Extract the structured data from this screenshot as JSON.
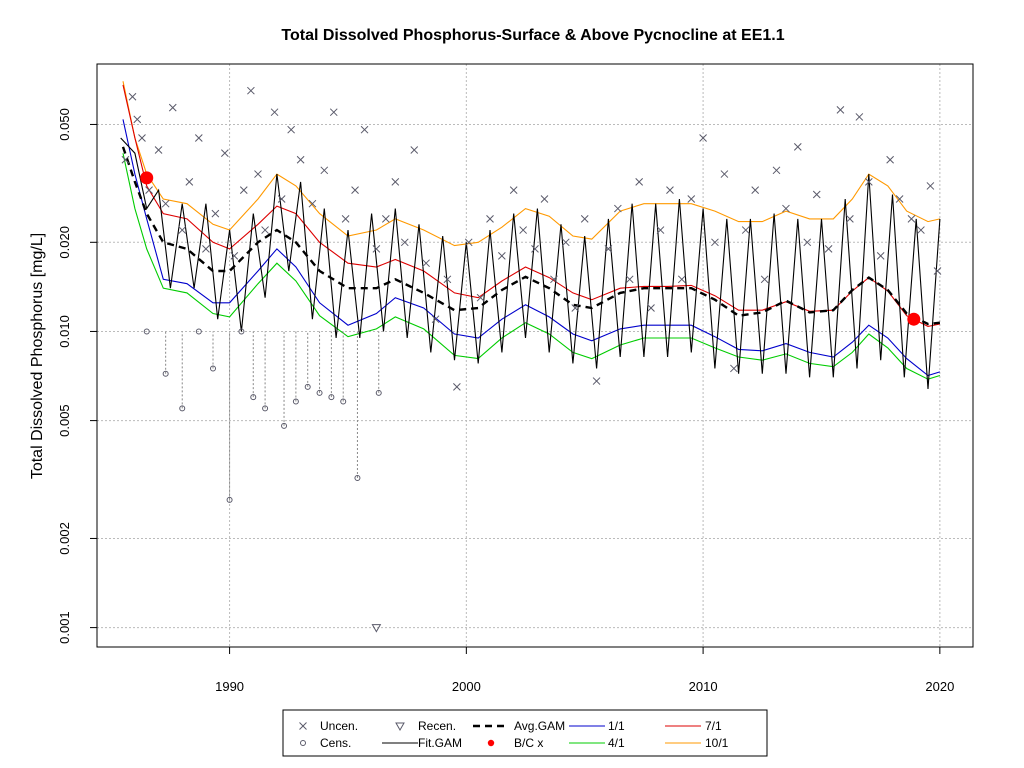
{
  "chart_data": {
    "type": "scatter",
    "title": "Total Dissolved Phosphorus-Surface & Above Pycnocline at EE1.1",
    "xlabel": "",
    "ylabel": "Total Dissolved Phosphorus [mg/L]",
    "y_scale": "log",
    "xlim": [
      1984.4,
      2021.4
    ],
    "ylim": [
      0.00086,
      0.08
    ],
    "grid": true,
    "x_ticks": [
      1990,
      2000,
      2010,
      2020
    ],
    "y_ticks": [
      0.001,
      0.002,
      0.005,
      0.01,
      0.02,
      0.05
    ],
    "x_tick_labels": [
      "1990",
      "2000",
      "2010",
      "2020"
    ],
    "y_tick_labels": [
      "0.001",
      "0.002",
      "0.005",
      "0.010",
      "0.020",
      "0.050"
    ],
    "legend_position": "bottom-center",
    "legend": [
      {
        "label": "Uncen.",
        "symbol": "x",
        "color": "#5a5a6a"
      },
      {
        "label": "Recen.",
        "symbol": "triangle-down",
        "color": "#5a5a6a"
      },
      {
        "label": "Avg.GAM",
        "symbol": "dashed-line",
        "color": "#000000"
      },
      {
        "label": "1/1",
        "symbol": "line",
        "color": "#0000cc"
      },
      {
        "label": "7/1",
        "symbol": "line",
        "color": "#dd0000"
      },
      {
        "label": "Cens.",
        "symbol": "circle",
        "color": "#5a5a6a"
      },
      {
        "label": "Fit.GAM",
        "symbol": "line",
        "color": "#000000"
      },
      {
        "label": "B/C x",
        "symbol": "dot",
        "color": "#ff0000"
      },
      {
        "label": "4/1",
        "symbol": "line",
        "color": "#00cc00"
      },
      {
        "label": "10/1",
        "symbol": "line",
        "color": "#ff9900"
      }
    ],
    "series": [
      {
        "name": "Avg.GAM",
        "color": "#000000",
        "style": "dashed",
        "x": [
          1985.5,
          1986.0,
          1986.5,
          1987.2,
          1988.2,
          1989.3,
          1990.0,
          1991.2,
          1992.0,
          1992.8,
          1993.8,
          1995.0,
          1996.2,
          1997.0,
          1998.2,
          1999.5,
          2000.5,
          2001.5,
          2002.5,
          2003.5,
          2004.5,
          2005.3,
          2006.5,
          2007.5,
          2008.5,
          2009.5,
          2010.5,
          2011.5,
          2012.5,
          2013.5,
          2014.5,
          2015.5,
          2016.3,
          2017.0,
          2017.8,
          2018.6,
          2019.5,
          2020.0
        ],
        "y": [
          0.042,
          0.032,
          0.025,
          0.02,
          0.019,
          0.016,
          0.016,
          0.02,
          0.022,
          0.02,
          0.016,
          0.014,
          0.014,
          0.015,
          0.0135,
          0.0118,
          0.012,
          0.0138,
          0.0153,
          0.014,
          0.0123,
          0.012,
          0.0135,
          0.014,
          0.014,
          0.014,
          0.0128,
          0.0113,
          0.0116,
          0.0127,
          0.0116,
          0.0118,
          0.0138,
          0.0152,
          0.0138,
          0.0115,
          0.0106,
          0.0107
        ]
      },
      {
        "name": "1/1",
        "color": "#0000cc",
        "x": [
          1985.5,
          1986.0,
          1986.5,
          1987.2,
          1988.2,
          1989.3,
          1990.0,
          1991.2,
          1992.0,
          1992.8,
          1993.8,
          1995.0,
          1996.2,
          1997.0,
          1998.2,
          1999.5,
          2000.5,
          2001.5,
          2002.5,
          2003.5,
          2004.5,
          2005.3,
          2006.5,
          2007.5,
          2008.5,
          2009.5,
          2010.5,
          2011.5,
          2012.5,
          2013.5,
          2014.5,
          2015.5,
          2016.3,
          2017.0,
          2017.8,
          2018.6,
          2019.5,
          2020.0
        ],
        "y": [
          0.052,
          0.034,
          0.024,
          0.015,
          0.0145,
          0.0125,
          0.0125,
          0.016,
          0.019,
          0.0165,
          0.0125,
          0.0105,
          0.0115,
          0.013,
          0.012,
          0.0098,
          0.0095,
          0.011,
          0.0123,
          0.0112,
          0.0098,
          0.0093,
          0.0102,
          0.0105,
          0.0105,
          0.0105,
          0.0096,
          0.0087,
          0.0086,
          0.0091,
          0.0085,
          0.0082,
          0.0092,
          0.0105,
          0.0095,
          0.0081,
          0.0071,
          0.0073
        ]
      },
      {
        "name": "4/1",
        "color": "#00cc00",
        "x": [
          1985.5,
          1986.0,
          1986.5,
          1987.2,
          1988.2,
          1989.3,
          1990.0,
          1991.2,
          1992.0,
          1992.8,
          1993.8,
          1995.0,
          1996.2,
          1997.0,
          1998.2,
          1999.5,
          2000.5,
          2001.5,
          2002.5,
          2003.5,
          2004.5,
          2005.3,
          2006.5,
          2007.5,
          2008.5,
          2009.5,
          2010.5,
          2011.5,
          2012.5,
          2013.5,
          2014.5,
          2015.5,
          2016.3,
          2017.0,
          2017.8,
          2018.6,
          2019.5,
          2020.0
        ],
        "y": [
          0.04,
          0.026,
          0.019,
          0.014,
          0.0135,
          0.0115,
          0.0112,
          0.0145,
          0.017,
          0.0148,
          0.0113,
          0.0096,
          0.0102,
          0.0112,
          0.0102,
          0.0083,
          0.0081,
          0.0095,
          0.0107,
          0.0098,
          0.0085,
          0.0081,
          0.009,
          0.0095,
          0.0095,
          0.0095,
          0.0088,
          0.0082,
          0.008,
          0.0084,
          0.0078,
          0.0076,
          0.0085,
          0.0098,
          0.0088,
          0.0075,
          0.0069,
          0.0071
        ]
      },
      {
        "name": "7/1",
        "color": "#dd0000",
        "x": [
          1985.5,
          1986.0,
          1986.5,
          1987.2,
          1988.2,
          1989.3,
          1990.0,
          1991.2,
          1992.0,
          1992.8,
          1993.8,
          1995.0,
          1996.2,
          1997.0,
          1998.2,
          1999.5,
          2000.5,
          2001.5,
          2002.5,
          2003.5,
          2004.5,
          2005.3,
          2006.5,
          2007.5,
          2008.5,
          2009.5,
          2010.5,
          2011.5,
          2012.5,
          2013.5,
          2014.5,
          2015.5,
          2016.3,
          2017.0,
          2017.8,
          2018.6,
          2019.5,
          2020.0
        ],
        "y": [
          0.068,
          0.045,
          0.031,
          0.025,
          0.024,
          0.02,
          0.019,
          0.023,
          0.0265,
          0.025,
          0.02,
          0.017,
          0.0165,
          0.0175,
          0.016,
          0.0135,
          0.013,
          0.0148,
          0.0165,
          0.0152,
          0.0135,
          0.0128,
          0.014,
          0.0142,
          0.0142,
          0.0143,
          0.0132,
          0.0118,
          0.0118,
          0.0126,
          0.0117,
          0.0118,
          0.0137,
          0.0152,
          0.0137,
          0.0113,
          0.0104,
          0.0106
        ]
      },
      {
        "name": "10/1",
        "color": "#ff9900",
        "x": [
          1985.5,
          1986.0,
          1986.5,
          1987.2,
          1988.2,
          1989.3,
          1990.0,
          1991.2,
          1992.0,
          1992.8,
          1993.8,
          1995.0,
          1996.2,
          1997.0,
          1998.2,
          1999.5,
          2000.5,
          2001.5,
          2002.5,
          2003.5,
          2004.5,
          2005.3,
          2006.5,
          2007.5,
          2008.5,
          2009.5,
          2010.5,
          2011.5,
          2012.5,
          2013.5,
          2014.5,
          2015.5,
          2016.3,
          2017.0,
          2017.8,
          2018.6,
          2019.5,
          2020.0
        ],
        "y": [
          0.07,
          0.045,
          0.034,
          0.028,
          0.027,
          0.023,
          0.022,
          0.028,
          0.034,
          0.031,
          0.025,
          0.021,
          0.022,
          0.024,
          0.022,
          0.0195,
          0.02,
          0.0225,
          0.026,
          0.0245,
          0.021,
          0.0205,
          0.0255,
          0.027,
          0.027,
          0.027,
          0.0255,
          0.0235,
          0.0235,
          0.0255,
          0.024,
          0.024,
          0.028,
          0.034,
          0.031,
          0.0255,
          0.0235,
          0.024
        ]
      },
      {
        "name": "Fit.GAM",
        "color": "#000000",
        "x": [
          1985.4,
          1986.0,
          1986.5,
          1987.0,
          1987.5,
          1988.0,
          1988.5,
          1989.0,
          1989.5,
          1990.0,
          1990.5,
          1991.0,
          1991.5,
          1992.0,
          1992.5,
          1993.0,
          1993.5,
          1994.0,
          1994.5,
          1995.0,
          1995.5,
          1996.0,
          1996.5,
          1997.0,
          1997.5,
          1998.0,
          1998.5,
          1999.0,
          1999.5,
          2000.0,
          2000.5,
          2001.0,
          2001.5,
          2002.0,
          2002.5,
          2003.0,
          2003.5,
          2004.0,
          2004.5,
          2005.0,
          2005.5,
          2006.0,
          2006.5,
          2007.0,
          2007.5,
          2008.0,
          2008.5,
          2009.0,
          2009.5,
          2010.0,
          2010.5,
          2011.0,
          2011.5,
          2012.0,
          2012.5,
          2013.0,
          2013.5,
          2014.0,
          2014.5,
          2015.0,
          2015.5,
          2016.0,
          2016.5,
          2017.0,
          2017.5,
          2018.0,
          2018.5,
          2019.0,
          2019.5,
          2020.0
        ],
        "y": [
          0.045,
          0.04,
          0.026,
          0.03,
          0.014,
          0.027,
          0.014,
          0.027,
          0.011,
          0.022,
          0.01,
          0.025,
          0.013,
          0.034,
          0.016,
          0.032,
          0.011,
          0.026,
          0.0095,
          0.022,
          0.0095,
          0.025,
          0.01,
          0.026,
          0.0095,
          0.023,
          0.0085,
          0.021,
          0.008,
          0.02,
          0.0078,
          0.022,
          0.0085,
          0.025,
          0.0095,
          0.026,
          0.0085,
          0.023,
          0.0078,
          0.021,
          0.0075,
          0.024,
          0.0082,
          0.027,
          0.0082,
          0.027,
          0.0082,
          0.028,
          0.0085,
          0.026,
          0.0075,
          0.024,
          0.0072,
          0.024,
          0.0072,
          0.025,
          0.0072,
          0.024,
          0.007,
          0.024,
          0.007,
          0.028,
          0.0075,
          0.034,
          0.008,
          0.029,
          0.007,
          0.024,
          0.0064,
          0.024
        ]
      },
      {
        "name": "B/C x",
        "type": "points",
        "color": "#ff0000",
        "x": [
          1986.5,
          2018.9
        ],
        "y": [
          0.033,
          0.011
        ]
      },
      {
        "name": "Uncen.",
        "type": "points",
        "color": "#5a5a6a",
        "x": [
          1985.6,
          1985.9,
          1986.1,
          1986.3,
          1986.6,
          1987.0,
          1987.3,
          1987.6,
          1988.0,
          1988.3,
          1988.7,
          1989.0,
          1989.4,
          1989.8,
          1990.2,
          1990.6,
          1990.9,
          1991.2,
          1991.5,
          1991.9,
          1992.2,
          1992.6,
          1993.0,
          1993.5,
          1994.0,
          1994.4,
          1994.9,
          1995.3,
          1995.7,
          1996.2,
          1996.6,
          1997.0,
          1997.4,
          1997.8,
          1998.3,
          1998.7,
          1999.2,
          1999.6,
          2000.1,
          2000.6,
          2001.0,
          2001.5,
          2002.0,
          2002.4,
          2002.9,
          2003.3,
          2003.7,
          2004.2,
          2004.6,
          2005.0,
          2005.5,
          2006.0,
          2006.4,
          2006.9,
          2007.3,
          2007.8,
          2008.2,
          2008.6,
          2009.1,
          2009.5,
          2010.0,
          2010.5,
          2010.9,
          2011.3,
          2011.8,
          2012.2,
          2012.6,
          2013.1,
          2013.5,
          2014.0,
          2014.4,
          2014.8,
          2015.3,
          2015.8,
          2016.2,
          2016.6,
          2017.0,
          2017.5,
          2017.9,
          2018.3,
          2018.8,
          2019.2,
          2019.6,
          2019.9
        ],
        "y": [
          0.038,
          0.062,
          0.052,
          0.045,
          0.03,
          0.041,
          0.027,
          0.057,
          0.022,
          0.032,
          0.045,
          0.019,
          0.025,
          0.04,
          0.018,
          0.03,
          0.065,
          0.034,
          0.022,
          0.055,
          0.028,
          0.048,
          0.038,
          0.027,
          0.035,
          0.055,
          0.024,
          0.03,
          0.048,
          0.019,
          0.024,
          0.032,
          0.02,
          0.041,
          0.017,
          0.011,
          0.015,
          0.0065,
          0.02,
          0.013,
          0.024,
          0.018,
          0.03,
          0.022,
          0.019,
          0.028,
          0.015,
          0.02,
          0.012,
          0.024,
          0.0068,
          0.019,
          0.026,
          0.015,
          0.032,
          0.012,
          0.022,
          0.03,
          0.015,
          0.028,
          0.045,
          0.02,
          0.034,
          0.0075,
          0.022,
          0.03,
          0.015,
          0.035,
          0.026,
          0.042,
          0.02,
          0.029,
          0.019,
          0.056,
          0.024,
          0.053,
          0.032,
          0.018,
          0.038,
          0.028,
          0.024,
          0.022,
          0.031,
          0.016
        ]
      },
      {
        "name": "Cens.",
        "type": "points",
        "color": "#5a5a6a",
        "x": [
          1986.5,
          1987.3,
          1988.0,
          1988.7,
          1989.3,
          1990.0,
          1990.5,
          1991.0,
          1991.5,
          1992.3,
          1992.8,
          1993.3,
          1993.8,
          1994.3,
          1994.8,
          1995.4,
          1996.3
        ],
        "y": [
          0.01,
          0.0072,
          0.0055,
          0.01,
          0.0075,
          0.0027,
          0.01,
          0.006,
          0.0055,
          0.0048,
          0.0058,
          0.0065,
          0.0062,
          0.006,
          0.0058,
          0.0032,
          0.0062
        ]
      },
      {
        "name": "Recen.",
        "type": "points",
        "color": "#5a5a6a",
        "x": [
          1996.2
        ],
        "y": [
          0.001
        ]
      }
    ]
  }
}
